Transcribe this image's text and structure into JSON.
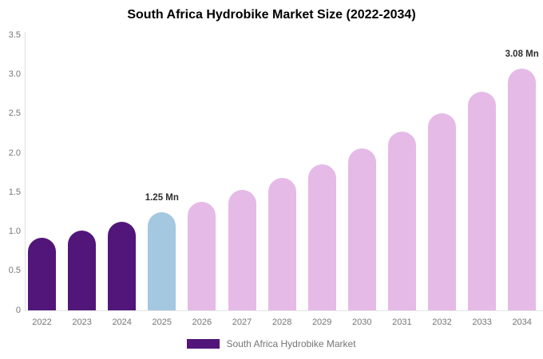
{
  "title": "South Africa Hydrobike Market Size (2022-2034)",
  "legend": {
    "label": "South Africa Hydrobike Market",
    "swatch_color": "#521579"
  },
  "colors": {
    "historical": "#521579",
    "base_year": "#a3c8df",
    "forecast": "#e5bae7",
    "axis_line": "#e0e0e0",
    "tick_text": "#757575",
    "annotation_text": "#2f2f2f"
  },
  "chart_data": {
    "type": "bar",
    "title": "South Africa Hydrobike Market Size (2022-2034)",
    "unit": "Mn",
    "categories": [
      "2022",
      "2023",
      "2024",
      "2025",
      "2026",
      "2027",
      "2028",
      "2029",
      "2030",
      "2031",
      "2032",
      "2033",
      "2034"
    ],
    "values": [
      0.92,
      1.02,
      1.13,
      1.25,
      1.38,
      1.53,
      1.69,
      1.86,
      2.06,
      2.27,
      2.51,
      2.78,
      3.08
    ],
    "segments": [
      "historical",
      "historical",
      "historical",
      "base_year",
      "forecast",
      "forecast",
      "forecast",
      "forecast",
      "forecast",
      "forecast",
      "forecast",
      "forecast",
      "forecast"
    ],
    "annotations": [
      {
        "category": "2025",
        "label": "1.25 Mn"
      },
      {
        "category": "2034",
        "label": "3.08 Mn"
      }
    ],
    "ylim": [
      0,
      3.5
    ],
    "yticks": [
      0,
      0.5,
      1,
      1.5,
      2,
      2.5,
      3,
      3.5
    ],
    "ytick_labels": [
      "0",
      "0.5",
      "1.0",
      "1.5",
      "2.0",
      "2.5",
      "3.0",
      "3.5"
    ],
    "xlabel": "",
    "ylabel": "",
    "grid": false,
    "legend_position": "bottom",
    "series_name": "South Africa Hydrobike Market"
  }
}
